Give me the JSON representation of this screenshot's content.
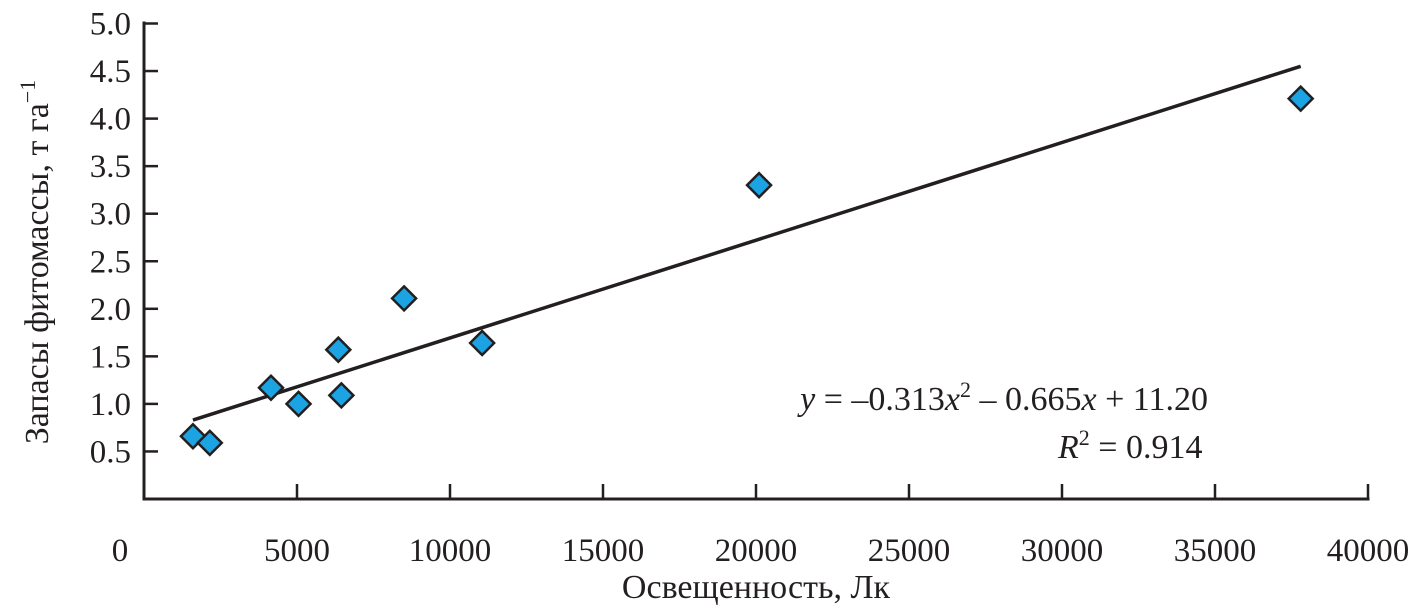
{
  "chart_data": {
    "type": "scatter",
    "xlabel": "Освещенность, Лк",
    "ylabel": "Запасы фитомассы, т га",
    "ylabel_superscript": "−1",
    "xlim": [
      0,
      40000
    ],
    "ylim": [
      0,
      5.0
    ],
    "x_ticks": [
      "0",
      "5000",
      "10000",
      "15000",
      "20000",
      "25000",
      "30000",
      "35000",
      "40000"
    ],
    "y_ticks": [
      "0.5",
      "1.0",
      "1.5",
      "2.0",
      "2.5",
      "3.0",
      "3.5",
      "4.0",
      "4.5",
      "5.0"
    ],
    "grid": false,
    "marker": "diamond",
    "colors": {
      "marker_fill": "#1ba3e3",
      "marker_stroke": "#231f20",
      "line": "#231f20"
    },
    "points": [
      {
        "x": 1600,
        "y": 0.66
      },
      {
        "x": 2150,
        "y": 0.59
      },
      {
        "x": 4150,
        "y": 1.17
      },
      {
        "x": 5050,
        "y": 1.0
      },
      {
        "x": 6350,
        "y": 1.57
      },
      {
        "x": 6450,
        "y": 1.09
      },
      {
        "x": 8500,
        "y": 2.11
      },
      {
        "x": 11050,
        "y": 1.64
      },
      {
        "x": 20100,
        "y": 3.3
      },
      {
        "x": 37800,
        "y": 4.21
      }
    ],
    "trendline": [
      {
        "x": 1600,
        "y": 0.83
      },
      {
        "x": 37800,
        "y": 4.55
      }
    ],
    "annotation": {
      "eq_y": "y",
      "eq_mid1": " = –0.313",
      "eq_x1": "x",
      "eq_sup": "2",
      "eq_mid2": " – 0.665",
      "eq_x2": "x",
      "eq_end": " + 11.20",
      "r_label": "R",
      "r_sup": "2",
      "r_value": " = 0.914"
    }
  }
}
